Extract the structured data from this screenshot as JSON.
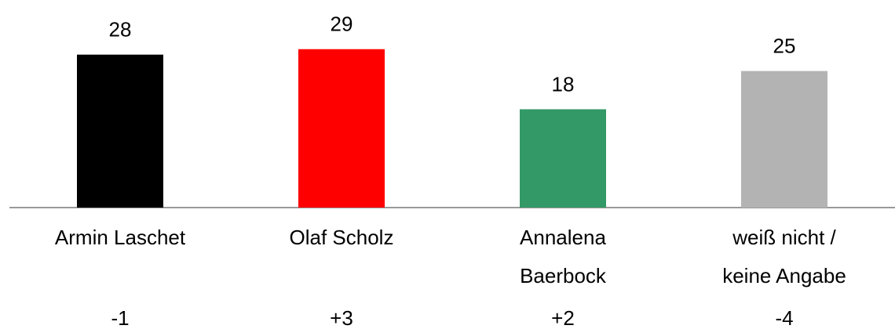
{
  "chart_data": {
    "type": "bar",
    "categories": [
      [
        "Armin Laschet"
      ],
      [
        "Olaf Scholz"
      ],
      [
        "Annalena",
        "Baerbock"
      ],
      [
        "weiß nicht /",
        "keine Angabe"
      ]
    ],
    "values": [
      28,
      29,
      18,
      25
    ],
    "colors": [
      "#000000",
      "#ff0000",
      "#339966",
      "#b3b3b3"
    ],
    "changes": [
      "-1",
      "+3",
      "+2",
      "-4"
    ],
    "ylim": [
      0,
      38
    ]
  }
}
